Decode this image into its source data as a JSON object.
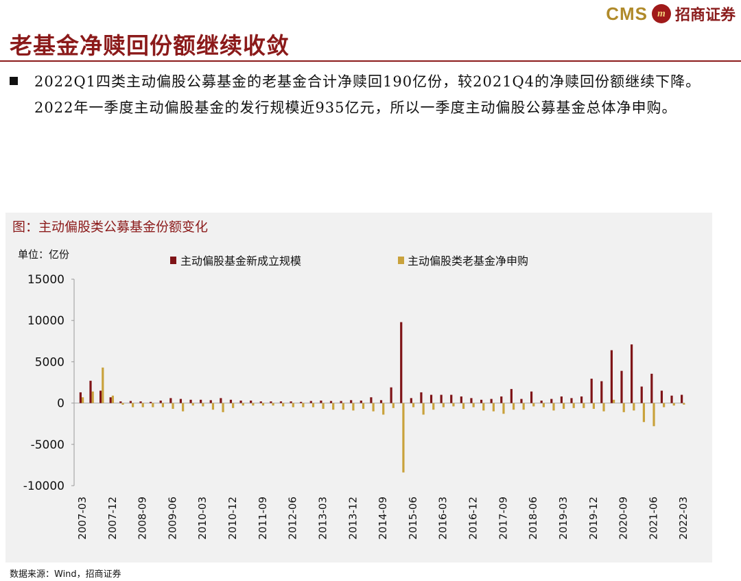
{
  "header": {
    "logo_en": "CMS",
    "logo_badge": "m",
    "logo_cn": "招商证券"
  },
  "page_title": "老基金净赎回份额继续收敛",
  "bullet_text": "2022Q1四类主动偏股公募基金的老基金合计净赎回190亿份，较2021Q4的净赎回份额继续下降。2022年一季度主动偏股基金的发行规模近935亿元，所以一季度主动偏股公募基金总体净申购。",
  "chart_title": "图：主动偏股类公募基金份额变化",
  "unit_label": "单位：亿份",
  "source": "数据来源：Wind，招商证券",
  "colors": {
    "brand": "#8b1a1a",
    "series1": "#7f1417",
    "series2": "#c9a23c"
  },
  "chart_data": {
    "type": "bar",
    "ylim": [
      -10000,
      15000
    ],
    "yticks": [
      15000,
      10000,
      5000,
      0,
      -5000,
      -10000
    ],
    "legend_position": "top",
    "grid": false,
    "categories": [
      "2007-03",
      "2007-06",
      "2007-09",
      "2007-12",
      "2008-03",
      "2008-06",
      "2008-09",
      "2008-12",
      "2009-03",
      "2009-06",
      "2009-09",
      "2009-12",
      "2010-03",
      "2010-06",
      "2010-09",
      "2010-12",
      "2011-03",
      "2011-06",
      "2011-09",
      "2011-12",
      "2012-03",
      "2012-06",
      "2012-09",
      "2012-12",
      "2013-03",
      "2013-06",
      "2013-09",
      "2013-12",
      "2014-03",
      "2014-06",
      "2014-09",
      "2014-12",
      "2015-03",
      "2015-06",
      "2015-09",
      "2015-12",
      "2016-03",
      "2016-06",
      "2016-09",
      "2016-12",
      "2017-03",
      "2017-06",
      "2017-09",
      "2017-12",
      "2018-03",
      "2018-06",
      "2018-09",
      "2018-12",
      "2019-03",
      "2019-06",
      "2019-09",
      "2019-12",
      "2020-03",
      "2020-06",
      "2020-09",
      "2020-12",
      "2021-03",
      "2021-06",
      "2021-09",
      "2021-12",
      "2022-03"
    ],
    "tick_labels": [
      "2007-03",
      "2007-12",
      "2008-09",
      "2009-06",
      "2010-03",
      "2010-12",
      "2011-09",
      "2012-06",
      "2013-03",
      "2013-12",
      "2014-09",
      "2015-06",
      "2016-03",
      "2016-12",
      "2017-09",
      "2018-06",
      "2019-03",
      "2019-12",
      "2020-09",
      "2021-06",
      "2022-03"
    ],
    "series": [
      {
        "name": "主动偏股基金新成立规模",
        "values": [
          1300,
          2700,
          1500,
          700,
          200,
          250,
          200,
          150,
          300,
          600,
          500,
          400,
          400,
          350,
          600,
          400,
          300,
          300,
          200,
          200,
          200,
          200,
          150,
          250,
          300,
          250,
          250,
          350,
          300,
          700,
          350,
          1900,
          9800,
          600,
          1300,
          1000,
          1000,
          1000,
          800,
          600,
          400,
          500,
          800,
          1700,
          500,
          1400,
          300,
          500,
          800,
          600,
          800,
          2950,
          2650,
          6400,
          3900,
          7100,
          2000,
          3550,
          1500,
          900,
          1000
        ]
      },
      {
        "name": "主动偏股类老基金净申购",
        "values": [
          700,
          1400,
          4300,
          900,
          -200,
          -500,
          -500,
          -500,
          -500,
          -700,
          -1000,
          -300,
          -400,
          -800,
          -1100,
          -600,
          -300,
          -300,
          -300,
          -300,
          -400,
          -500,
          -500,
          -500,
          -700,
          -800,
          -800,
          -900,
          -700,
          -1000,
          -1400,
          -600,
          -8400,
          -500,
          -1400,
          -800,
          -500,
          -400,
          -700,
          -500,
          -900,
          -1000,
          -1300,
          -800,
          -800,
          -400,
          -500,
          -900,
          -700,
          -600,
          -600,
          -700,
          -1000,
          400,
          -1100,
          -900,
          -2300,
          -2800,
          -500,
          -300,
          -190
        ]
      }
    ]
  }
}
